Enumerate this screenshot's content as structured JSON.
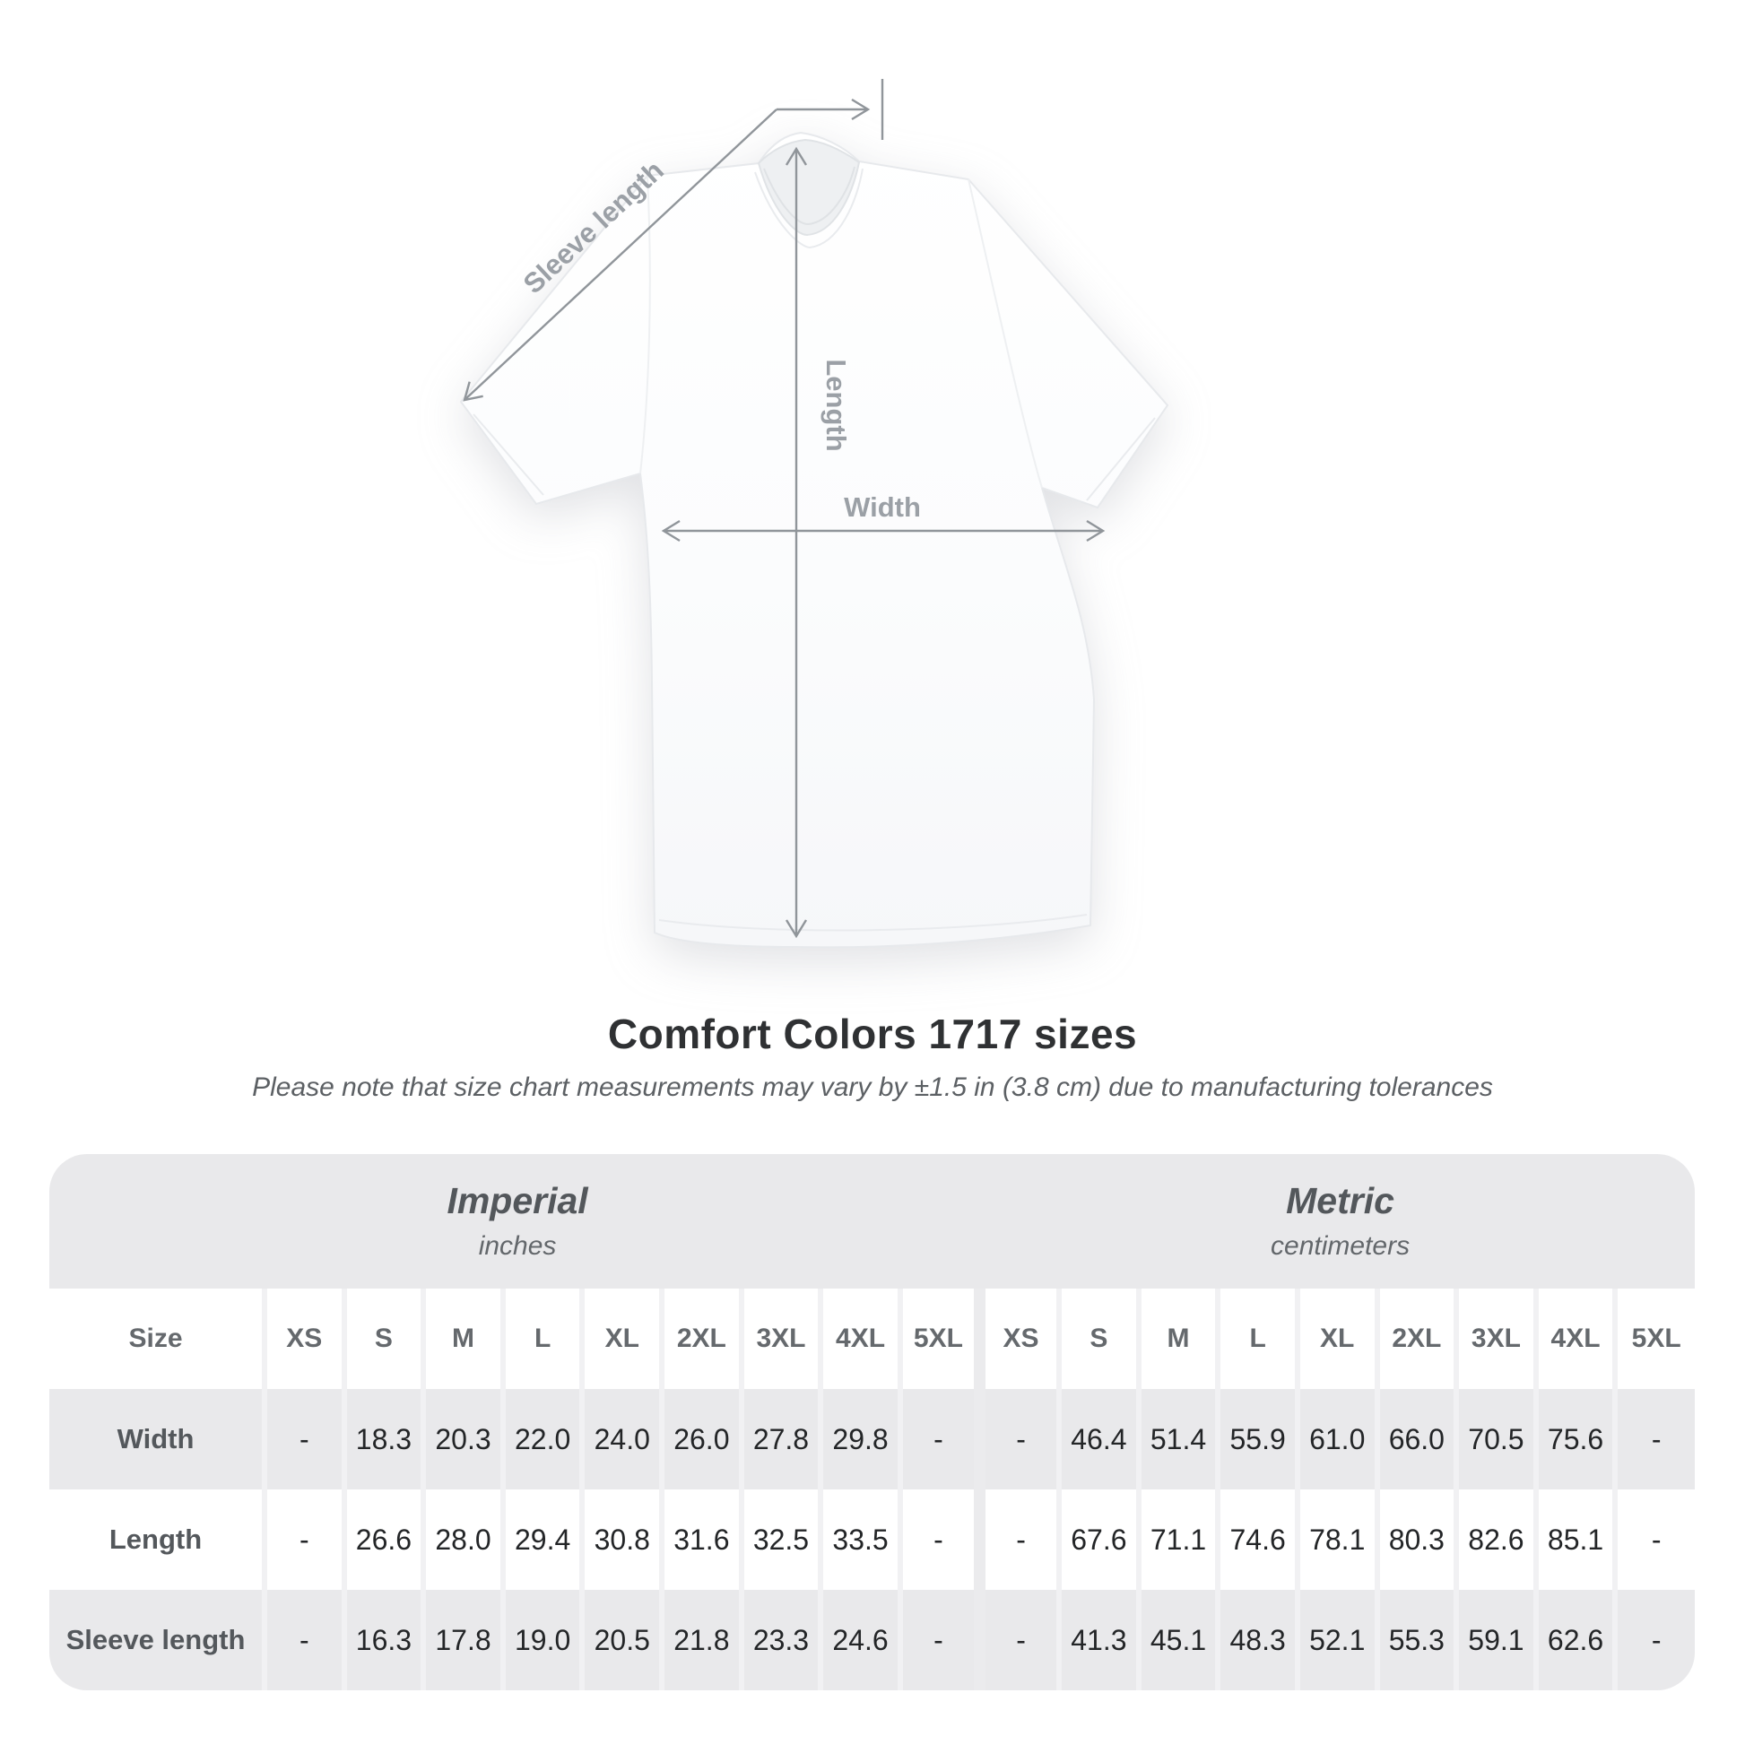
{
  "diagram": {
    "labels": {
      "sleeve_length": "Sleeve length",
      "length": "Length",
      "width": "Width"
    },
    "annotation_color": "#90959a",
    "label_color": "#9ba0a6"
  },
  "title": "Comfort Colors 1717 sizes",
  "subtitle": "Please note that size chart measurements may vary by ±1.5 in (3.8 cm) due to manufacturing tolerances",
  "table": {
    "size_header_label": "Size",
    "groups": [
      {
        "label": "Imperial",
        "sublabel": "inches"
      },
      {
        "label": "Metric",
        "sublabel": "centimeters"
      }
    ],
    "sizes": [
      "XS",
      "S",
      "M",
      "L",
      "XL",
      "2XL",
      "3XL",
      "4XL",
      "5XL"
    ],
    "rows": [
      {
        "label": "Width",
        "imperial": [
          "-",
          "18.3",
          "20.3",
          "22.0",
          "24.0",
          "26.0",
          "27.8",
          "29.8",
          "-"
        ],
        "metric": [
          "-",
          "46.4",
          "51.4",
          "55.9",
          "61.0",
          "66.0",
          "70.5",
          "75.6",
          "-"
        ]
      },
      {
        "label": "Length",
        "imperial": [
          "-",
          "26.6",
          "28.0",
          "29.4",
          "30.8",
          "31.6",
          "32.5",
          "33.5",
          "-"
        ],
        "metric": [
          "-",
          "67.6",
          "71.1",
          "74.6",
          "78.1",
          "80.3",
          "82.6",
          "85.1",
          "-"
        ]
      },
      {
        "label": "Sleeve length",
        "imperial": [
          "-",
          "16.3",
          "17.8",
          "19.0",
          "20.5",
          "21.8",
          "23.3",
          "24.6",
          "-"
        ],
        "metric": [
          "-",
          "41.3",
          "45.1",
          "48.3",
          "52.1",
          "55.3",
          "59.1",
          "62.6",
          "-"
        ]
      }
    ],
    "colors": {
      "band": "#e9e9eb",
      "alt_row": "#e9e9eb",
      "separator": "#f1f1f3"
    }
  },
  "chart_data": {
    "type": "table",
    "title": "Comfort Colors 1717 sizes",
    "note": "Please note that size chart measurements may vary by ±1.5 in (3.8 cm) due to manufacturing tolerances",
    "column_groups": [
      {
        "name": "Imperial",
        "unit": "inches"
      },
      {
        "name": "Metric",
        "unit": "centimeters"
      }
    ],
    "columns": [
      "XS",
      "S",
      "M",
      "L",
      "XL",
      "2XL",
      "3XL",
      "4XL",
      "5XL"
    ],
    "series": [
      {
        "name": "Width (in)",
        "values": [
          null,
          18.3,
          20.3,
          22.0,
          24.0,
          26.0,
          27.8,
          29.8,
          null
        ]
      },
      {
        "name": "Length (in)",
        "values": [
          null,
          26.6,
          28.0,
          29.4,
          30.8,
          31.6,
          32.5,
          33.5,
          null
        ]
      },
      {
        "name": "Sleeve length (in)",
        "values": [
          null,
          16.3,
          17.8,
          19.0,
          20.5,
          21.8,
          23.3,
          24.6,
          null
        ]
      },
      {
        "name": "Width (cm)",
        "values": [
          null,
          46.4,
          51.4,
          55.9,
          61.0,
          66.0,
          70.5,
          75.6,
          null
        ]
      },
      {
        "name": "Length (cm)",
        "values": [
          null,
          67.6,
          71.1,
          74.6,
          78.1,
          80.3,
          82.6,
          85.1,
          null
        ]
      },
      {
        "name": "Sleeve length (cm)",
        "values": [
          null,
          41.3,
          45.1,
          48.3,
          52.1,
          55.3,
          59.1,
          62.6,
          null
        ]
      }
    ]
  }
}
